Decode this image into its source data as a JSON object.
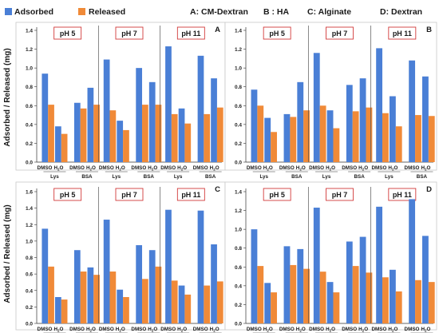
{
  "legend": {
    "adsorbed": "Adsorbed",
    "released": "Released",
    "adsorbed_color": "#4a7fd6",
    "released_color": "#f08a38"
  },
  "header_labels": [
    "A: CM-Dextran",
    "B : HA",
    "C: Alginate",
    "D: Dextran"
  ],
  "ylabel": "Adsorbed / Released (mg)",
  "ph_labels": [
    "pH 5",
    "pH 7",
    "pH 11"
  ],
  "sub_labels": [
    "DMSO",
    "H2O"
  ],
  "sub_label_parts": {
    "dmso": "DMSO",
    "h2o_main": "H",
    "h2o_sub": "2",
    "h2o_end": "O"
  },
  "protein_labels": [
    "Lys",
    "BSA"
  ],
  "chart_data": [
    {
      "type": "bar",
      "panel": "A",
      "ylim": [
        0,
        1.4
      ],
      "yticks": [
        "0.0",
        "0.2",
        "0.4",
        "0.6",
        "0.8",
        "1.0",
        "1.2",
        "1.4"
      ],
      "series": [
        {
          "name": "Adsorbed",
          "values": [
            0.94,
            0.38,
            0.63,
            0.79,
            1.09,
            0.44,
            1.0,
            0.85,
            1.23,
            0.57,
            1.13,
            0.89
          ]
        },
        {
          "name": "Released",
          "values": [
            0.61,
            0.3,
            0.57,
            0.61,
            0.55,
            0.34,
            0.61,
            0.61,
            0.51,
            0.41,
            0.51,
            0.58
          ]
        }
      ]
    },
    {
      "type": "bar",
      "panel": "B",
      "ylim": [
        0,
        1.4
      ],
      "yticks": [
        "0.0",
        "0.2",
        "0.4",
        "0.6",
        "0.8",
        "1.0",
        "1.2",
        "1.4"
      ],
      "series": [
        {
          "name": "Adsorbed",
          "values": [
            0.77,
            0.47,
            0.51,
            0.85,
            1.16,
            0.55,
            0.82,
            0.89,
            1.21,
            0.7,
            1.08,
            0.91
          ]
        },
        {
          "name": "Released",
          "values": [
            0.6,
            0.32,
            0.48,
            0.55,
            0.6,
            0.36,
            0.54,
            0.58,
            0.52,
            0.38,
            0.5,
            0.49
          ]
        }
      ]
    },
    {
      "type": "bar",
      "panel": "C",
      "ylim": [
        0,
        1.6
      ],
      "yticks": [
        "0.0",
        "0.2",
        "0.4",
        "0.6",
        "0.8",
        "1.0",
        "1.2",
        "1.4",
        "1.6"
      ],
      "series": [
        {
          "name": "Adsorbed",
          "values": [
            1.15,
            0.32,
            0.89,
            0.68,
            1.26,
            0.41,
            0.95,
            0.89,
            1.38,
            0.46,
            1.37,
            0.96
          ]
        },
        {
          "name": "Released",
          "values": [
            0.69,
            0.29,
            0.63,
            0.59,
            0.63,
            0.32,
            0.54,
            0.69,
            0.52,
            0.35,
            0.46,
            0.51
          ]
        }
      ]
    },
    {
      "type": "bar",
      "panel": "D",
      "ylim": [
        0,
        1.4
      ],
      "yticks": [
        "0.0",
        "0.2",
        "0.4",
        "0.6",
        "0.8",
        "1.0",
        "1.2",
        "1.4"
      ],
      "series": [
        {
          "name": "Adsorbed",
          "values": [
            1.0,
            0.43,
            0.82,
            0.79,
            1.23,
            0.44,
            0.87,
            0.92,
            1.24,
            0.57,
            1.32,
            0.93
          ]
        },
        {
          "name": "Released",
          "values": [
            0.61,
            0.33,
            0.62,
            0.58,
            0.55,
            0.33,
            0.61,
            0.54,
            0.49,
            0.34,
            0.46,
            0.44
          ]
        }
      ]
    }
  ]
}
